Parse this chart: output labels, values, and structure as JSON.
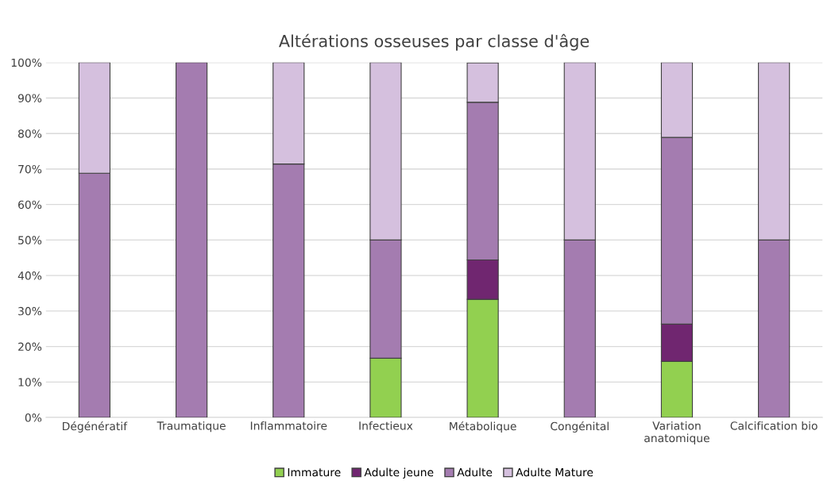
{
  "chart_data": {
    "type": "bar",
    "stacked": true,
    "title": "Altérations osseuses par classe d'âge",
    "categories": [
      "Dégénératif",
      "Traumatique",
      "Inflammatoire",
      "Infectieux",
      "Métabolique",
      "Congénital",
      "Variation\nanatomique",
      "Calcification bio"
    ],
    "series": [
      {
        "name": "Immature",
        "color": "#92d050",
        "values": [
          0,
          0,
          0,
          16.7,
          33.3,
          0,
          15.8,
          0
        ]
      },
      {
        "name": "Adulte jeune",
        "color": "#702670",
        "values": [
          0,
          0,
          0,
          0,
          11.1,
          0,
          10.5,
          0
        ]
      },
      {
        "name": "Adulte",
        "color": "#a47cb0",
        "values": [
          68.8,
          100,
          71.4,
          33.3,
          44.4,
          50,
          52.6,
          50
        ]
      },
      {
        "name": "Adulte Mature",
        "color": "#d5c0de",
        "values": [
          31.2,
          0,
          28.6,
          50,
          11.1,
          50,
          21.1,
          50
        ]
      }
    ],
    "ylim": [
      0,
      100
    ],
    "yticks": [
      {
        "value": 0,
        "label": "0%"
      },
      {
        "value": 10,
        "label": "10%"
      },
      {
        "value": 20,
        "label": "20%"
      },
      {
        "value": 30,
        "label": "30%"
      },
      {
        "value": 40,
        "label": "40%"
      },
      {
        "value": 50,
        "label": "50%"
      },
      {
        "value": 60,
        "label": "60%"
      },
      {
        "value": 70,
        "label": "70%"
      },
      {
        "value": 80,
        "label": "80%"
      },
      {
        "value": 90,
        "label": "90%"
      },
      {
        "value": 100,
        "label": "100%"
      }
    ],
    "grid": "y",
    "legend": "bottom"
  }
}
